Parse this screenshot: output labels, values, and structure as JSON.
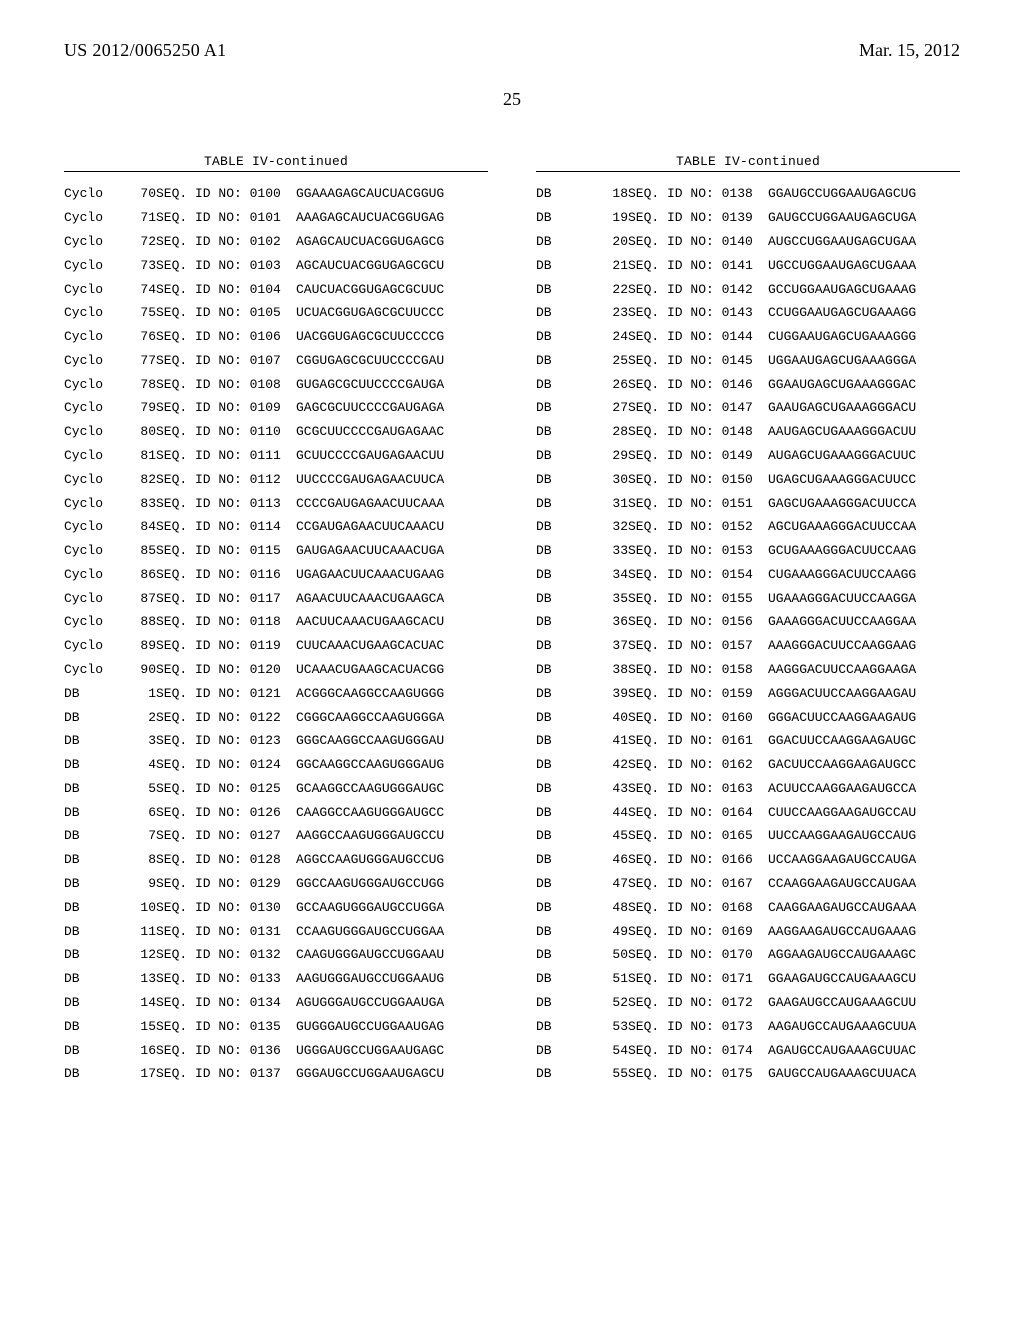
{
  "header": {
    "publication_number": "US 2012/0065250 A1",
    "date": "Mar. 15, 2012"
  },
  "page_number": "25",
  "table_continued_label": "TABLE IV-continued",
  "fonts": {
    "body": "Times New Roman",
    "mono": "Courier New",
    "mono_size_pt": 13,
    "body_size_pt": 18
  },
  "colors": {
    "text": "#000000",
    "background": "#ffffff",
    "rule": "#000000"
  },
  "left_rows": [
    {
      "name": "Cyclo",
      "idx": "70",
      "seqid": "SEQ. ID NO: 0100",
      "seq": "GGAAAGAGCAUCUACGGUG"
    },
    {
      "name": "Cyclo",
      "idx": "71",
      "seqid": "SEQ. ID NO: 0101",
      "seq": "AAAGAGCAUCUACGGUGAG"
    },
    {
      "name": "Cyclo",
      "idx": "72",
      "seqid": "SEQ. ID NO: 0102",
      "seq": "AGAGCAUCUACGGUGAGCG"
    },
    {
      "name": "Cyclo",
      "idx": "73",
      "seqid": "SEQ. ID NO: 0103",
      "seq": "AGCAUCUACGGUGAGCGCU"
    },
    {
      "name": "Cyclo",
      "idx": "74",
      "seqid": "SEQ. ID NO: 0104",
      "seq": "CAUCUACGGUGAGCGCUUC"
    },
    {
      "name": "Cyclo",
      "idx": "75",
      "seqid": "SEQ. ID NO: 0105",
      "seq": "UCUACGGUGAGCGCUUCCC"
    },
    {
      "name": "Cyclo",
      "idx": "76",
      "seqid": "SEQ. ID NO: 0106",
      "seq": "UACGGUGAGCGCUUCCCCG"
    },
    {
      "name": "Cyclo",
      "idx": "77",
      "seqid": "SEQ. ID NO: 0107",
      "seq": "CGGUGAGCGCUUCCCCGAU"
    },
    {
      "name": "Cyclo",
      "idx": "78",
      "seqid": "SEQ. ID NO: 0108",
      "seq": "GUGAGCGCUUCCCCGAUGA"
    },
    {
      "name": "Cyclo",
      "idx": "79",
      "seqid": "SEQ. ID NO: 0109",
      "seq": "GAGCGCUUCCCCGAUGAGA"
    },
    {
      "name": "Cyclo",
      "idx": "80",
      "seqid": "SEQ. ID NO: 0110",
      "seq": "GCGCUUCCCCGAUGAGAAC"
    },
    {
      "name": "Cyclo",
      "idx": "81",
      "seqid": "SEQ. ID NO: 0111",
      "seq": "GCUUCCCCGAUGAGAACUU"
    },
    {
      "name": "Cyclo",
      "idx": "82",
      "seqid": "SEQ. ID NO: 0112",
      "seq": "UUCCCCGAUGAGAACUUCA"
    },
    {
      "name": "Cyclo",
      "idx": "83",
      "seqid": "SEQ. ID NO: 0113",
      "seq": "CCCCGAUGAGAACUUCAAA"
    },
    {
      "name": "Cyclo",
      "idx": "84",
      "seqid": "SEQ. ID NO: 0114",
      "seq": "CCGAUGAGAACUUCAAACU"
    },
    {
      "name": "Cyclo",
      "idx": "85",
      "seqid": "SEQ. ID NO: 0115",
      "seq": "GAUGAGAACUUCAAACUGA"
    },
    {
      "name": "Cyclo",
      "idx": "86",
      "seqid": "SEQ. ID NO: 0116",
      "seq": "UGAGAACUUCAAACUGAAG"
    },
    {
      "name": "Cyclo",
      "idx": "87",
      "seqid": "SEQ. ID NO: 0117",
      "seq": "AGAACUUCAAACUGAAGCA"
    },
    {
      "name": "Cyclo",
      "idx": "88",
      "seqid": "SEQ. ID NO: 0118",
      "seq": "AACUUCAAACUGAAGCACU"
    },
    {
      "name": "Cyclo",
      "idx": "89",
      "seqid": "SEQ. ID NO: 0119",
      "seq": "CUUCAAACUGAAGCACUAC"
    },
    {
      "name": "Cyclo",
      "idx": "90",
      "seqid": "SEQ. ID NO: 0120",
      "seq": "UCAAACUGAAGCACUACGG"
    },
    {
      "name": "DB",
      "idx": "1",
      "seqid": "SEQ. ID NO: 0121",
      "seq": "ACGGGCAAGGCCAAGUGGG"
    },
    {
      "name": "DB",
      "idx": "2",
      "seqid": "SEQ. ID NO: 0122",
      "seq": "CGGGCAAGGCCAAGUGGGA"
    },
    {
      "name": "DB",
      "idx": "3",
      "seqid": "SEQ. ID NO: 0123",
      "seq": "GGGCAAGGCCAAGUGGGAU"
    },
    {
      "name": "DB",
      "idx": "4",
      "seqid": "SEQ. ID NO: 0124",
      "seq": "GGCAAGGCCAAGUGGGAUG"
    },
    {
      "name": "DB",
      "idx": "5",
      "seqid": "SEQ. ID NO: 0125",
      "seq": "GCAAGGCCAAGUGGGAUGC"
    },
    {
      "name": "DB",
      "idx": "6",
      "seqid": "SEQ. ID NO: 0126",
      "seq": "CAAGGCCAAGUGGGAUGCC"
    },
    {
      "name": "DB",
      "idx": "7",
      "seqid": "SEQ. ID NO: 0127",
      "seq": "AAGGCCAAGUGGGAUGCCU"
    },
    {
      "name": "DB",
      "idx": "8",
      "seqid": "SEQ. ID NO: 0128",
      "seq": "AGGCCAAGUGGGAUGCCUG"
    },
    {
      "name": "DB",
      "idx": "9",
      "seqid": "SEQ. ID NO: 0129",
      "seq": "GGCCAAGUGGGAUGCCUGG"
    },
    {
      "name": "DB",
      "idx": "10",
      "seqid": "SEQ. ID NO: 0130",
      "seq": "GCCAAGUGGGAUGCCUGGA"
    },
    {
      "name": "DB",
      "idx": "11",
      "seqid": "SEQ. ID NO: 0131",
      "seq": "CCAAGUGGGAUGCCUGGAA"
    },
    {
      "name": "DB",
      "idx": "12",
      "seqid": "SEQ. ID NO: 0132",
      "seq": "CAAGUGGGAUGCCUGGAAU"
    },
    {
      "name": "DB",
      "idx": "13",
      "seqid": "SEQ. ID NO: 0133",
      "seq": "AAGUGGGAUGCCUGGAAUG"
    },
    {
      "name": "DB",
      "idx": "14",
      "seqid": "SEQ. ID NO: 0134",
      "seq": "AGUGGGAUGCCUGGAAUGA"
    },
    {
      "name": "DB",
      "idx": "15",
      "seqid": "SEQ. ID NO: 0135",
      "seq": "GUGGGAUGCCUGGAAUGAG"
    },
    {
      "name": "DB",
      "idx": "16",
      "seqid": "SEQ. ID NO: 0136",
      "seq": "UGGGAUGCCUGGAAUGAGC"
    },
    {
      "name": "DB",
      "idx": "17",
      "seqid": "SEQ. ID NO: 0137",
      "seq": "GGGAUGCCUGGAAUGAGCU"
    }
  ],
  "right_rows": [
    {
      "name": "DB",
      "idx": "18",
      "seqid": "SEQ. ID NO: 0138",
      "seq": "GGAUGCCUGGAAUGAGCUG"
    },
    {
      "name": "DB",
      "idx": "19",
      "seqid": "SEQ. ID NO: 0139",
      "seq": "GAUGCCUGGAAUGAGCUGA"
    },
    {
      "name": "DB",
      "idx": "20",
      "seqid": "SEQ. ID NO: 0140",
      "seq": "AUGCCUGGAAUGAGCUGAA"
    },
    {
      "name": "DB",
      "idx": "21",
      "seqid": "SEQ. ID NO: 0141",
      "seq": "UGCCUGGAAUGAGCUGAAA"
    },
    {
      "name": "DB",
      "idx": "22",
      "seqid": "SEQ. ID NO: 0142",
      "seq": "GCCUGGAAUGAGCUGAAAG"
    },
    {
      "name": "DB",
      "idx": "23",
      "seqid": "SEQ. ID NO: 0143",
      "seq": "CCUGGAAUGAGCUGAAAGG"
    },
    {
      "name": "DB",
      "idx": "24",
      "seqid": "SEQ. ID NO: 0144",
      "seq": "CUGGAAUGAGCUGAAAGGG"
    },
    {
      "name": "DB",
      "idx": "25",
      "seqid": "SEQ. ID NO: 0145",
      "seq": "UGGAAUGAGCUGAAAGGGA"
    },
    {
      "name": "DB",
      "idx": "26",
      "seqid": "SEQ. ID NO: 0146",
      "seq": "GGAAUGAGCUGAAAGGGAC"
    },
    {
      "name": "DB",
      "idx": "27",
      "seqid": "SEQ. ID NO: 0147",
      "seq": "GAAUGAGCUGAAAGGGACU"
    },
    {
      "name": "DB",
      "idx": "28",
      "seqid": "SEQ. ID NO: 0148",
      "seq": "AAUGAGCUGAAAGGGACUU"
    },
    {
      "name": "DB",
      "idx": "29",
      "seqid": "SEQ. ID NO: 0149",
      "seq": "AUGAGCUGAAAGGGACUUC"
    },
    {
      "name": "DB",
      "idx": "30",
      "seqid": "SEQ. ID NO: 0150",
      "seq": "UGAGCUGAAAGGGACUUCC"
    },
    {
      "name": "DB",
      "idx": "31",
      "seqid": "SEQ. ID NO: 0151",
      "seq": "GAGCUGAAAGGGACUUCCA"
    },
    {
      "name": "DB",
      "idx": "32",
      "seqid": "SEQ. ID NO: 0152",
      "seq": "AGCUGAAAGGGACUUCCAA"
    },
    {
      "name": "DB",
      "idx": "33",
      "seqid": "SEQ. ID NO: 0153",
      "seq": "GCUGAAAGGGACUUCCAAG"
    },
    {
      "name": "DB",
      "idx": "34",
      "seqid": "SEQ. ID NO: 0154",
      "seq": "CUGAAAGGGACUUCCAAGG"
    },
    {
      "name": "DB",
      "idx": "35",
      "seqid": "SEQ. ID NO: 0155",
      "seq": "UGAAAGGGACUUCCAAGGA"
    },
    {
      "name": "DB",
      "idx": "36",
      "seqid": "SEQ. ID NO: 0156",
      "seq": "GAAAGGGACUUCCAAGGAA"
    },
    {
      "name": "DB",
      "idx": "37",
      "seqid": "SEQ. ID NO: 0157",
      "seq": "AAAGGGACUUCCAAGGAAG"
    },
    {
      "name": "DB",
      "idx": "38",
      "seqid": "SEQ. ID NO: 0158",
      "seq": "AAGGGACUUCCAAGGAAGA"
    },
    {
      "name": "DB",
      "idx": "39",
      "seqid": "SEQ. ID NO: 0159",
      "seq": "AGGGACUUCCAAGGAAGAU"
    },
    {
      "name": "DB",
      "idx": "40",
      "seqid": "SEQ. ID NO: 0160",
      "seq": "GGGACUUCCAAGGAAGAUG"
    },
    {
      "name": "DB",
      "idx": "41",
      "seqid": "SEQ. ID NO: 0161",
      "seq": "GGACUUCCAAGGAAGAUGC"
    },
    {
      "name": "DB",
      "idx": "42",
      "seqid": "SEQ. ID NO: 0162",
      "seq": "GACUUCCAAGGAAGAUGCC"
    },
    {
      "name": "DB",
      "idx": "43",
      "seqid": "SEQ. ID NO: 0163",
      "seq": "ACUUCCAAGGAAGAUGCCA"
    },
    {
      "name": "DB",
      "idx": "44",
      "seqid": "SEQ. ID NO: 0164",
      "seq": "CUUCCAAGGAAGAUGCCAU"
    },
    {
      "name": "DB",
      "idx": "45",
      "seqid": "SEQ. ID NO: 0165",
      "seq": "UUCCAAGGAAGAUGCCAUG"
    },
    {
      "name": "DB",
      "idx": "46",
      "seqid": "SEQ. ID NO: 0166",
      "seq": "UCCAAGGAAGAUGCCAUGA"
    },
    {
      "name": "DB",
      "idx": "47",
      "seqid": "SEQ. ID NO: 0167",
      "seq": "CCAAGGAAGAUGCCAUGAA"
    },
    {
      "name": "DB",
      "idx": "48",
      "seqid": "SEQ. ID NO: 0168",
      "seq": "CAAGGAAGAUGCCAUGAAA"
    },
    {
      "name": "DB",
      "idx": "49",
      "seqid": "SEQ. ID NO: 0169",
      "seq": "AAGGAAGAUGCCAUGAAAG"
    },
    {
      "name": "DB",
      "idx": "50",
      "seqid": "SEQ. ID NO: 0170",
      "seq": "AGGAAGAUGCCAUGAAAGC"
    },
    {
      "name": "DB",
      "idx": "51",
      "seqid": "SEQ. ID NO: 0171",
      "seq": "GGAAGAUGCCAUGAAAGCU"
    },
    {
      "name": "DB",
      "idx": "52",
      "seqid": "SEQ. ID NO: 0172",
      "seq": "GAAGAUGCCAUGAAAGCUU"
    },
    {
      "name": "DB",
      "idx": "53",
      "seqid": "SEQ. ID NO: 0173",
      "seq": "AAGAUGCCAUGAAAGCUUA"
    },
    {
      "name": "DB",
      "idx": "54",
      "seqid": "SEQ. ID NO: 0174",
      "seq": "AGAUGCCAUGAAAGCUUAC"
    },
    {
      "name": "DB",
      "idx": "55",
      "seqid": "SEQ. ID NO: 0175",
      "seq": "GAUGCCAUGAAAGCUUACA"
    }
  ]
}
